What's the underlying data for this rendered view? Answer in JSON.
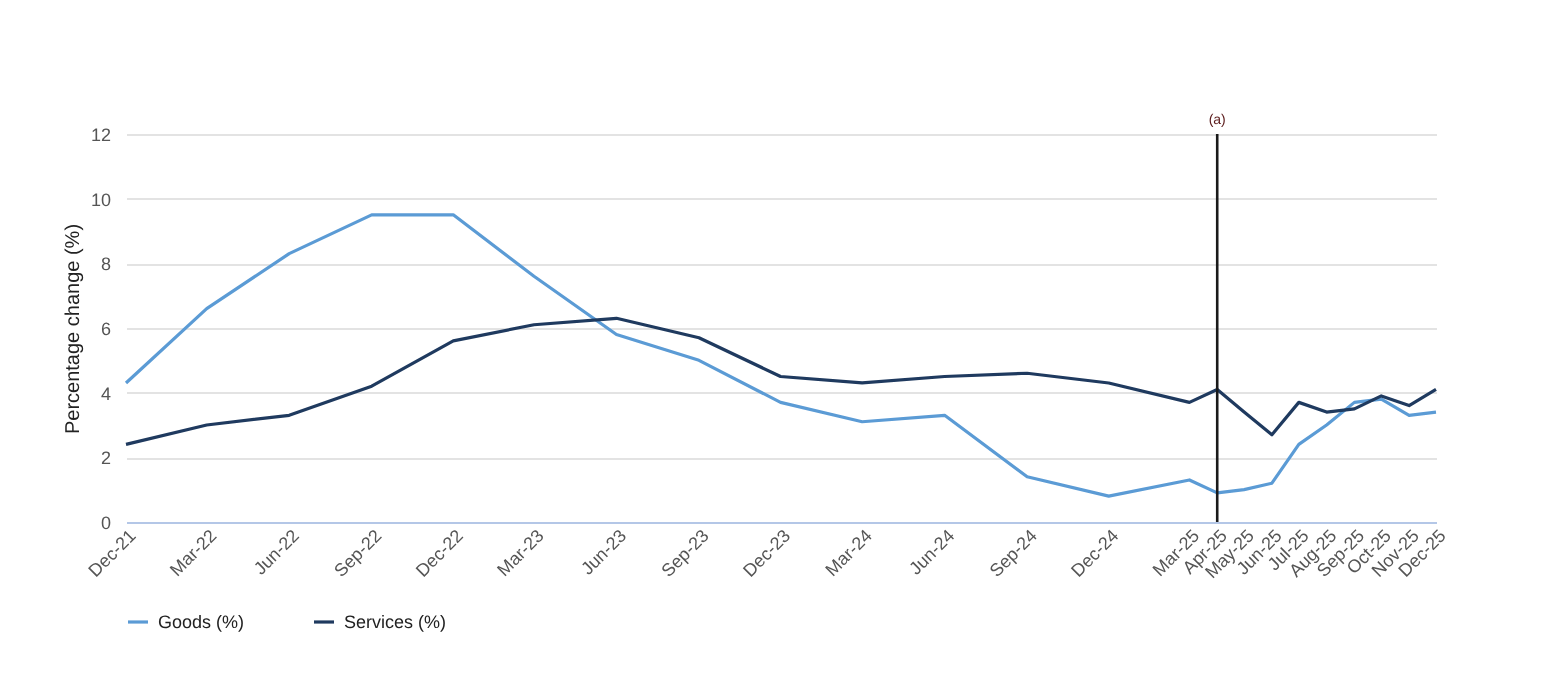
{
  "chart_data": {
    "type": "line",
    "ylabel": "Percentage change (%)",
    "x": [
      "2021-12",
      "2022-03",
      "2022-06",
      "2022-09",
      "2022-12",
      "2023-03",
      "2023-06",
      "2023-09",
      "2023-12",
      "2024-03",
      "2024-06",
      "2024-09",
      "2024-12",
      "2025-03",
      "2025-04",
      "2025-05",
      "2025-06",
      "2025-07",
      "2025-08",
      "2025-09",
      "2025-10",
      "2025-11",
      "2025-12"
    ],
    "xlim": [
      "2021-12",
      "2025-12"
    ],
    "xticks": [
      {
        "value": "2021-12",
        "label": "Dec-21"
      },
      {
        "value": "2022-03",
        "label": "Mar-22"
      },
      {
        "value": "2022-06",
        "label": "Jun-22"
      },
      {
        "value": "2022-09",
        "label": "Sep-22"
      },
      {
        "value": "2022-12",
        "label": "Dec-22"
      },
      {
        "value": "2023-03",
        "label": "Mar-23"
      },
      {
        "value": "2023-06",
        "label": "Jun-23"
      },
      {
        "value": "2023-09",
        "label": "Sep-23"
      },
      {
        "value": "2023-12",
        "label": "Dec-23"
      },
      {
        "value": "2024-03",
        "label": "Mar-24"
      },
      {
        "value": "2024-06",
        "label": "Jun-24"
      },
      {
        "value": "2024-09",
        "label": "Sep-24"
      },
      {
        "value": "2024-12",
        "label": "Dec-24"
      },
      {
        "value": "2025-03",
        "label": "Mar-25"
      },
      {
        "value": "2025-04",
        "label": "Apr-25"
      },
      {
        "value": "2025-05",
        "label": "May-25"
      },
      {
        "value": "2025-06",
        "label": "Jun-25"
      },
      {
        "value": "2025-07",
        "label": "Jul-25"
      },
      {
        "value": "2025-08",
        "label": "Aug-25"
      },
      {
        "value": "2025-09",
        "label": "Sep-25"
      },
      {
        "value": "2025-10",
        "label": "Oct-25"
      },
      {
        "value": "2025-11",
        "label": "Nov-25"
      },
      {
        "value": "2025-12",
        "label": "Dec-25"
      }
    ],
    "ylim": [
      0,
      12
    ],
    "yticks": [
      0,
      2,
      4,
      6,
      8,
      10,
      12
    ],
    "grid": "y",
    "legend": "bottom",
    "line_style": "solid",
    "series": [
      {
        "name": "Goods (%)",
        "color": "#5b9bd5",
        "values": [
          4.3,
          6.6,
          8.3,
          9.5,
          9.5,
          7.6,
          5.8,
          5.0,
          3.7,
          3.1,
          3.3,
          1.4,
          0.8,
          1.3,
          0.9,
          1.0,
          1.2,
          2.4,
          3.0,
          3.7,
          3.8,
          3.3,
          3.4
        ]
      },
      {
        "name": "Services (%)",
        "color": "#1f3a5f",
        "values": [
          2.4,
          3.0,
          3.3,
          4.2,
          5.6,
          6.1,
          6.3,
          5.7,
          4.5,
          4.3,
          4.5,
          4.6,
          4.3,
          3.7,
          4.1,
          3.4,
          2.7,
          3.7,
          3.4,
          3.5,
          3.9,
          3.6,
          4.1
        ]
      }
    ],
    "ref_lines": [
      {
        "axis": "x",
        "value": "2025-04",
        "label": "(a)",
        "color": "#1a1a1a"
      }
    ]
  }
}
